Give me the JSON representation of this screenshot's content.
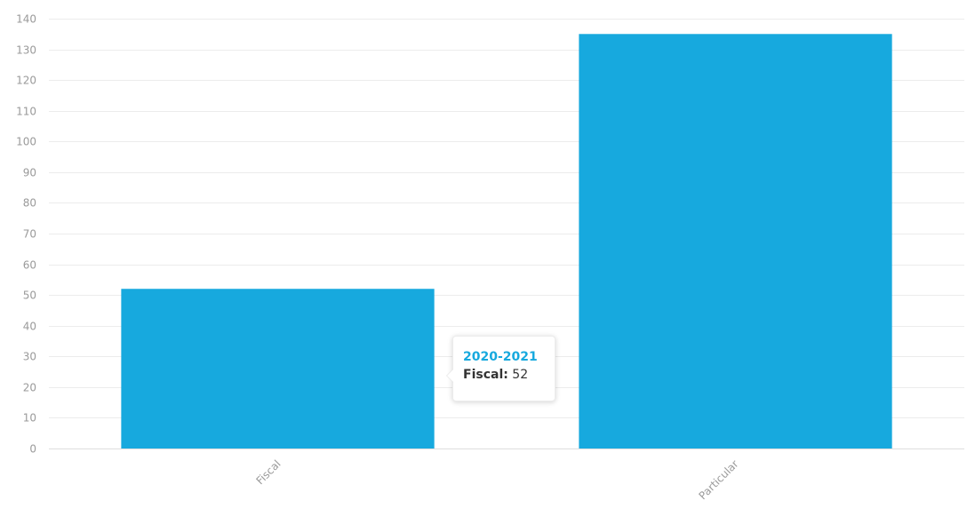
{
  "chart_data": {
    "type": "bar",
    "categories": [
      "Fiscal",
      "Particular"
    ],
    "series": [
      {
        "values": [
          52,
          135
        ]
      }
    ],
    "ylim": [
      0,
      140
    ],
    "yticks": [
      0,
      10,
      20,
      30,
      40,
      50,
      60,
      70,
      80,
      90,
      100,
      110,
      120,
      130,
      140
    ],
    "grid": true,
    "bar_color": "#17a9de",
    "xtick_rotation": -45
  },
  "tooltip": {
    "title": "2020-2021",
    "label": "Fiscal:",
    "value": "52"
  }
}
